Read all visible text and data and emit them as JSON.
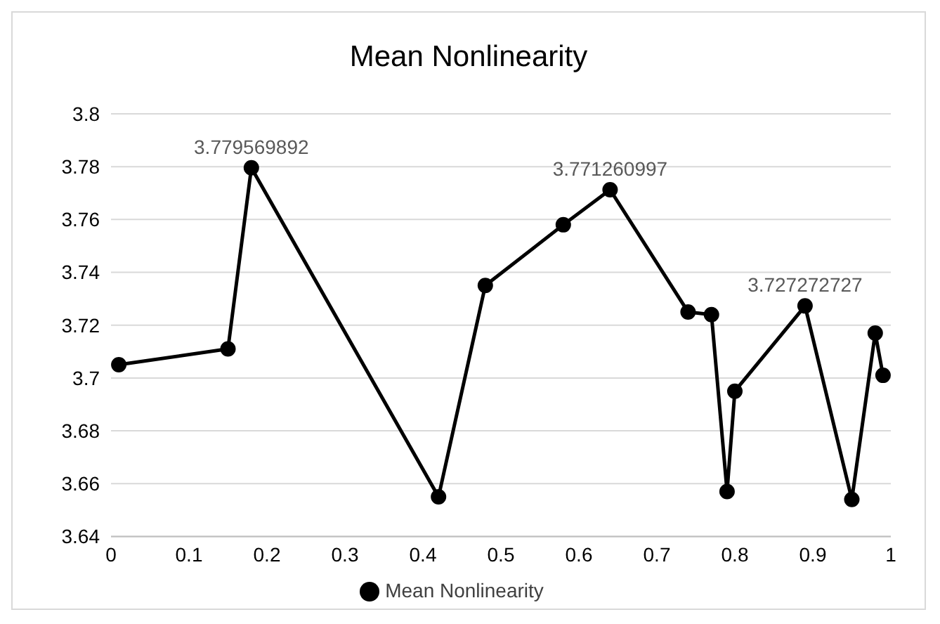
{
  "chart_data": {
    "type": "line",
    "title": "Mean Nonlinearity",
    "x": [
      0.01,
      0.15,
      0.18,
      0.42,
      0.48,
      0.58,
      0.64,
      0.74,
      0.77,
      0.79,
      0.8,
      0.89,
      0.95,
      0.98,
      0.99
    ],
    "series": [
      {
        "name": "Mean Nonlinearity",
        "color": "#000000",
        "values": [
          3.705,
          3.711,
          3.779569892,
          3.655,
          3.735,
          3.758,
          3.771260997,
          3.725,
          3.724,
          3.657,
          3.695,
          3.727272727,
          3.654,
          3.717,
          3.701
        ],
        "value_labels": [
          null,
          null,
          "3.779569892",
          null,
          null,
          null,
          "3.771260997",
          null,
          null,
          null,
          null,
          "3.727272727",
          null,
          null,
          null
        ]
      }
    ],
    "xlim": [
      0,
      1
    ],
    "xticks": [
      0,
      0.1,
      0.2,
      0.3,
      0.4,
      0.5,
      0.6,
      0.7,
      0.8,
      0.9,
      1
    ],
    "ylim": [
      3.64,
      3.8
    ],
    "yticks": [
      3.64,
      3.66,
      3.68,
      3.7,
      3.72,
      3.74,
      3.76,
      3.78,
      3.8
    ],
    "grid": "y",
    "legend": "bottom",
    "marker": "circle",
    "line_style": "solid"
  }
}
